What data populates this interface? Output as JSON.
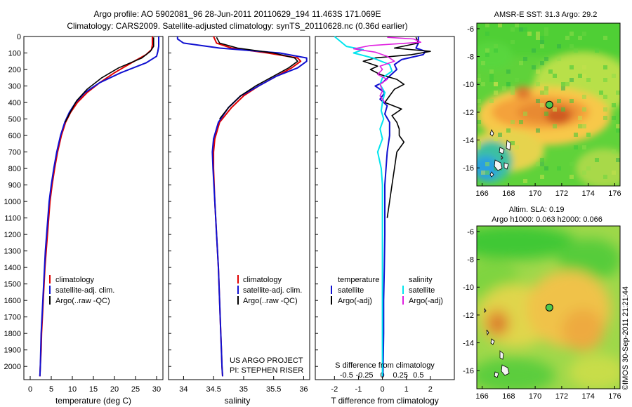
{
  "header": {
    "line1": "Argo profile: AO 5902081_96 28-Jun-2011 20110629_194 11.463S 171.069E",
    "line2": "Climatology: CARS2009. Satellite-adjusted climatology: synTS_20110628.nc (0.36d earlier)"
  },
  "colors": {
    "climatology": "#e00000",
    "satellite": "#1010d0",
    "argo": "#000000",
    "sat_salinity": "#00e5ee",
    "argo_salinity": "#e020e0",
    "marker": "#4ec94e"
  },
  "chart_data": [
    {
      "id": "temperature",
      "type": "line",
      "xlabel": "temperature (deg C)",
      "ylabel": "depth",
      "xlim": [
        -1.5,
        31.5
      ],
      "ylim": [
        2080,
        0
      ],
      "xticks": [
        0,
        5,
        10,
        15,
        20,
        25,
        30
      ],
      "yticks": [
        0,
        100,
        200,
        300,
        400,
        500,
        600,
        700,
        800,
        900,
        1000,
        1100,
        1200,
        1300,
        1400,
        1500,
        1600,
        1700,
        1800,
        1900,
        2000
      ],
      "legend": [
        "climatology",
        "satellite-adj. clim.",
        "Argo(..raw -QC)"
      ],
      "series": [
        {
          "name": "climatology",
          "color": "#e00000",
          "width": 2,
          "points": [
            [
              29.0,
              0
            ],
            [
              29.0,
              50
            ],
            [
              28.8,
              80
            ],
            [
              27.5,
              110
            ],
            [
              24.0,
              160
            ],
            [
              20.0,
              220
            ],
            [
              16.5,
              280
            ],
            [
              13.5,
              340
            ],
            [
              11.2,
              400
            ],
            [
              9.6,
              460
            ],
            [
              8.4,
              520
            ],
            [
              7.4,
              600
            ],
            [
              6.5,
              700
            ],
            [
              5.8,
              800
            ],
            [
              5.2,
              900
            ],
            [
              4.7,
              1000
            ],
            [
              4.4,
              1100
            ],
            [
              4.1,
              1200
            ],
            [
              3.8,
              1300
            ],
            [
              3.5,
              1400
            ],
            [
              3.3,
              1500
            ],
            [
              3.1,
              1600
            ],
            [
              2.9,
              1700
            ],
            [
              2.7,
              1800
            ],
            [
              2.6,
              1900
            ],
            [
              2.4,
              2000
            ],
            [
              2.3,
              2060
            ]
          ]
        },
        {
          "name": "satellite-adj. clim.",
          "color": "#1010d0",
          "width": 2,
          "points": [
            [
              30.5,
              0
            ],
            [
              30.5,
              60
            ],
            [
              30.3,
              90
            ],
            [
              30.0,
              120
            ],
            [
              27.5,
              160
            ],
            [
              21.5,
              220
            ],
            [
              16.5,
              280
            ],
            [
              13.0,
              340
            ],
            [
              10.8,
              400
            ],
            [
              9.3,
              460
            ],
            [
              8.2,
              520
            ],
            [
              7.2,
              600
            ],
            [
              6.3,
              700
            ],
            [
              5.6,
              800
            ],
            [
              5.0,
              900
            ],
            [
              4.5,
              1000
            ],
            [
              4.2,
              1100
            ],
            [
              3.9,
              1200
            ],
            [
              3.6,
              1300
            ],
            [
              3.4,
              1400
            ],
            [
              3.2,
              1500
            ],
            [
              3.0,
              1600
            ],
            [
              2.8,
              1700
            ],
            [
              2.6,
              1800
            ],
            [
              2.5,
              1900
            ],
            [
              2.4,
              2000
            ],
            [
              2.3,
              2060
            ]
          ]
        },
        {
          "name": "Argo(..raw -QC)",
          "color": "#000000",
          "width": 1.6,
          "points": [
            [
              29.3,
              5
            ],
            [
              29.3,
              60
            ],
            [
              28.5,
              90
            ],
            [
              26.5,
              130
            ],
            [
              21.0,
              190
            ],
            [
              17.0,
              250
            ],
            [
              13.5,
              320
            ],
            [
              11.0,
              390
            ],
            [
              9.5,
              460
            ],
            [
              8.3,
              520
            ]
          ]
        }
      ]
    },
    {
      "id": "salinity",
      "type": "line",
      "xlabel": "salinity",
      "ylabel": "depth",
      "xlim": [
        33.75,
        36.1
      ],
      "ylim": [
        2080,
        0
      ],
      "xticks": [
        34,
        34.5,
        35,
        35.5,
        36
      ],
      "legend": [
        "climatology",
        "satellite-adj. clim.",
        "Argo(..raw -QC)"
      ],
      "annotations": [
        "US ARGO PROJECT",
        "PI: STEPHEN RISER"
      ],
      "series": [
        {
          "name": "climatology",
          "color": "#e00000",
          "width": 2,
          "points": [
            [
              34.5,
              0
            ],
            [
              34.55,
              40
            ],
            [
              34.8,
              70
            ],
            [
              35.4,
              100
            ],
            [
              35.9,
              130
            ],
            [
              35.95,
              150
            ],
            [
              35.8,
              190
            ],
            [
              35.55,
              240
            ],
            [
              35.25,
              300
            ],
            [
              35.0,
              360
            ],
            [
              34.8,
              430
            ],
            [
              34.6,
              520
            ],
            [
              34.52,
              620
            ],
            [
              34.5,
              700
            ],
            [
              34.5,
              800
            ],
            [
              34.52,
              1000
            ],
            [
              34.55,
              1200
            ],
            [
              34.58,
              1400
            ],
            [
              34.6,
              1600
            ],
            [
              34.62,
              1800
            ],
            [
              34.63,
              1900
            ],
            [
              34.64,
              2000
            ],
            [
              34.65,
              2060
            ]
          ]
        },
        {
          "name": "satellite-adj. clim.",
          "color": "#1010d0",
          "width": 2,
          "points": [
            [
              33.9,
              0
            ],
            [
              33.9,
              15
            ],
            [
              34.0,
              40
            ],
            [
              34.6,
              70
            ],
            [
              35.6,
              100
            ],
            [
              36.05,
              130
            ],
            [
              36.05,
              150
            ],
            [
              35.9,
              190
            ],
            [
              35.55,
              240
            ],
            [
              35.25,
              300
            ],
            [
              34.95,
              360
            ],
            [
              34.75,
              430
            ],
            [
              34.58,
              520
            ],
            [
              34.5,
              620
            ],
            [
              34.48,
              700
            ],
            [
              34.49,
              800
            ],
            [
              34.52,
              1000
            ],
            [
              34.55,
              1200
            ],
            [
              34.58,
              1400
            ],
            [
              34.6,
              1600
            ],
            [
              34.62,
              1800
            ],
            [
              34.63,
              1900
            ],
            [
              34.64,
              2000
            ],
            [
              34.65,
              2060
            ]
          ]
        },
        {
          "name": "Argo(..raw -QC)",
          "color": "#000000",
          "width": 1.6,
          "points": [
            [
              34.55,
              5
            ],
            [
              34.6,
              40
            ],
            [
              34.9,
              70
            ],
            [
              35.5,
              100
            ],
            [
              35.85,
              130
            ],
            [
              35.9,
              150
            ],
            [
              35.75,
              190
            ],
            [
              35.5,
              240
            ],
            [
              35.2,
              300
            ],
            [
              34.95,
              360
            ],
            [
              34.75,
              430
            ],
            [
              34.6,
              500
            ]
          ]
        }
      ]
    },
    {
      "id": "difference",
      "type": "line",
      "xlabel": "T difference from climatology",
      "xlabel_top": "S difference from climatology",
      "xlim": [
        -2.8,
        3.0
      ],
      "ylim": [
        2080,
        0
      ],
      "xticks": [
        -2,
        -1,
        0,
        1,
        2
      ],
      "xtick_labels": [
        "-2",
        "-1",
        "0",
        "1",
        "2"
      ],
      "s_ticks": [
        {
          "pos": -1.5,
          "label": "-0.5"
        },
        {
          "pos": -0.75,
          "label": "-0.25"
        },
        {
          "pos": 0,
          "label": "0"
        },
        {
          "pos": 0.75,
          "label": "0.25"
        },
        {
          "pos": 1.5,
          "label": "0.5"
        }
      ],
      "legend": {
        "temperature_title": "temperature",
        "salinity_title": "salinity",
        "items": [
          "satellite",
          "Argo(-adj)",
          "satellite",
          "Argo(-adj)"
        ]
      },
      "series": [
        {
          "name": "T satellite",
          "color": "#1010d0",
          "width": 2,
          "points": [
            [
              1.5,
              0
            ],
            [
              1.5,
              40
            ],
            [
              1.4,
              70
            ],
            [
              1.8,
              90
            ],
            [
              1.7,
              110
            ],
            [
              0.8,
              140
            ],
            [
              0.5,
              170
            ],
            [
              0.6,
              200
            ],
            [
              0.3,
              240
            ],
            [
              0.0,
              280
            ],
            [
              -0.3,
              300
            ],
            [
              0.1,
              340
            ],
            [
              -0.1,
              380
            ],
            [
              0.2,
              420
            ],
            [
              0.1,
              470
            ],
            [
              0.3,
              520
            ],
            [
              0.3,
              600
            ],
            [
              0.2,
              700
            ],
            [
              0.15,
              800
            ],
            [
              0.1,
              900
            ],
            [
              0.1,
              1000
            ],
            [
              0.1,
              1200
            ],
            [
              0.08,
              1400
            ],
            [
              0.05,
              1600
            ],
            [
              0.05,
              1800
            ],
            [
              0.03,
              2000
            ],
            [
              0.02,
              2060
            ]
          ]
        },
        {
          "name": "T Argo(-adj)",
          "color": "#000000",
          "width": 1.6,
          "points": [
            [
              1.4,
              5
            ],
            [
              1.5,
              40
            ],
            [
              0.5,
              70
            ],
            [
              2.0,
              90
            ],
            [
              1.2,
              110
            ],
            [
              -0.3,
              130
            ],
            [
              -0.8,
              150
            ],
            [
              -0.2,
              180
            ],
            [
              -0.5,
              200
            ],
            [
              -0.1,
              230
            ],
            [
              0.6,
              260
            ],
            [
              0.9,
              290
            ],
            [
              0.5,
              320
            ],
            [
              0.3,
              360
            ],
            [
              0.1,
              400
            ],
            [
              0.8,
              440
            ],
            [
              0.4,
              480
            ],
            [
              0.6,
              520
            ],
            [
              0.7,
              560
            ],
            [
              0.7,
              600
            ],
            [
              0.9,
              640
            ],
            [
              0.6,
              700
            ],
            [
              0.5,
              800
            ],
            [
              0.4,
              900
            ],
            [
              0.3,
              1000
            ],
            [
              0.2,
              1100
            ]
          ]
        },
        {
          "name": "S satellite",
          "color": "#00e5ee",
          "width": 2,
          "points": [
            [
              -2.0,
              0
            ],
            [
              -1.5,
              60
            ],
            [
              -0.8,
              80
            ],
            [
              -1.2,
              100
            ],
            [
              -0.4,
              130
            ],
            [
              0.3,
              170
            ],
            [
              0.4,
              210
            ],
            [
              0.0,
              250
            ],
            [
              -0.1,
              290
            ],
            [
              0.1,
              340
            ],
            [
              0.0,
              400
            ],
            [
              -0.05,
              450
            ],
            [
              0.05,
              500
            ],
            [
              -0.1,
              560
            ],
            [
              0.0,
              620
            ],
            [
              -0.2,
              700
            ],
            [
              -0.05,
              800
            ],
            [
              0.0,
              900
            ],
            [
              0.0,
              1000
            ],
            [
              0.0,
              1200
            ],
            [
              0.0,
              1500
            ],
            [
              0.0,
              1800
            ],
            [
              0.0,
              2060
            ]
          ]
        },
        {
          "name": "S Argo(-adj)",
          "color": "#e020e0",
          "width": 1.6,
          "points": [
            [
              0.2,
              5
            ],
            [
              1.3,
              15
            ],
            [
              1.6,
              35
            ],
            [
              -0.5,
              55
            ],
            [
              -1.2,
              75
            ],
            [
              -0.3,
              95
            ],
            [
              0.2,
              120
            ],
            [
              0.5,
              150
            ],
            [
              -0.1,
              180
            ],
            [
              0.0,
              200
            ],
            [
              -0.2,
              230
            ],
            [
              0.2,
              260
            ],
            [
              -0.1,
              290
            ],
            [
              0.0,
              330
            ],
            [
              -0.1,
              360
            ],
            [
              0.1,
              400
            ]
          ]
        }
      ]
    },
    {
      "id": "sst_map",
      "type": "heatmap",
      "title": "AMSR-E SST: 31.3 Argo: 29.2",
      "xlim": [
        165.6,
        176.4
      ],
      "ylim": [
        -17.3,
        -5.6
      ],
      "xticks": [
        166,
        168,
        170,
        172,
        174,
        176
      ],
      "yticks": [
        -6,
        -8,
        -10,
        -12,
        -14,
        -16
      ],
      "marker": {
        "lon": 171.069,
        "lat": -11.463
      }
    },
    {
      "id": "sla_map",
      "type": "heatmap",
      "title": "Altim. SLA: 0.19",
      "subtitle": "Argo h1000: 0.063 h2000: 0.066",
      "xlim": [
        165.6,
        176.4
      ],
      "ylim": [
        -17.3,
        -5.6
      ],
      "xticks": [
        166,
        168,
        170,
        172,
        174,
        176
      ],
      "yticks": [
        -6,
        -8,
        -10,
        -12,
        -14,
        -16
      ],
      "marker": {
        "lon": 171.069,
        "lat": -11.463
      }
    }
  ],
  "credit": "©IMOS 30-Sep-2011 21:21:44"
}
